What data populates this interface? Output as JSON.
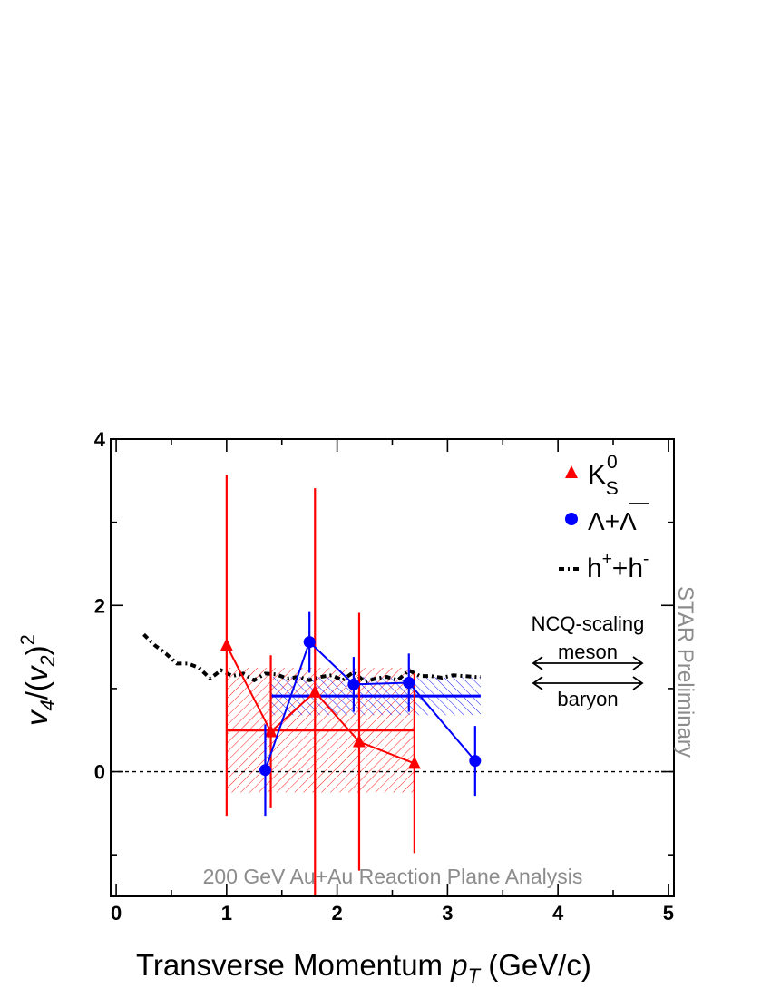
{
  "chart_data": {
    "type": "scatter",
    "xlabel": "Transverse Momentum",
    "xlabel_var": "p",
    "xlabel_sub": "T",
    "xlabel_unit": "(GeV/c)",
    "ylabel_v": "v",
    "ylabel_sub4": "4",
    "ylabel_sub2": "2",
    "ylabel_sup": "2",
    "xlim": [
      -0.05,
      5.05
    ],
    "ylim": [
      -1.5,
      4.0
    ],
    "xticks": [
      0,
      1,
      2,
      3,
      4,
      5
    ],
    "yticks": [
      0,
      2,
      4
    ],
    "grid": false,
    "legend_position": "top-right",
    "series": [
      {
        "name": "K",
        "name_sub": "S",
        "name_sup": "0",
        "marker": "triangle",
        "color": "#ff0000",
        "x": [
          1.0,
          1.4,
          1.8,
          2.2,
          2.7
        ],
        "y": [
          1.52,
          0.48,
          0.96,
          0.36,
          0.1
        ],
        "yerr": [
          2.05,
          0.92,
          2.45,
          1.55,
          1.08
        ]
      },
      {
        "name": "Λ+Λ",
        "marker": "circle",
        "color": "#0000ff",
        "x": [
          1.35,
          1.75,
          2.15,
          2.65,
          3.25
        ],
        "y": [
          0.02,
          1.56,
          1.05,
          1.07,
          0.13
        ],
        "yerr": [
          0.55,
          0.37,
          0.33,
          0.35,
          0.42
        ]
      },
      {
        "name": "h",
        "name_sup1": "+",
        "name_mid": "+h",
        "name_sup2": "-",
        "line_style": "dash-dot",
        "color": "#000000",
        "x": [
          0.25,
          0.35,
          0.45,
          0.55,
          0.65,
          0.75,
          0.85,
          0.95,
          1.05,
          1.15,
          1.25,
          1.35,
          1.45,
          1.55,
          1.65,
          1.75,
          1.85,
          1.95,
          2.05,
          2.15,
          2.25,
          2.35,
          2.45,
          2.55,
          2.65,
          2.75,
          2.85,
          2.95,
          3.05,
          3.15,
          3.25,
          3.3
        ],
        "y": [
          1.65,
          1.52,
          1.42,
          1.3,
          1.3,
          1.25,
          1.12,
          1.22,
          1.15,
          1.18,
          1.1,
          1.18,
          1.17,
          1.12,
          1.14,
          1.1,
          1.14,
          1.16,
          1.1,
          1.2,
          1.08,
          1.12,
          1.14,
          1.1,
          1.22,
          1.15,
          1.15,
          1.13,
          1.16,
          1.15,
          1.14,
          1.14
        ]
      }
    ],
    "bands": [
      {
        "name": "meson",
        "color": "#ff0000",
        "x_range": [
          1.0,
          2.7
        ],
        "value": 0.5,
        "y_range": [
          -0.25,
          1.25
        ]
      },
      {
        "name": "baryon",
        "color": "#0000ff",
        "x_range": [
          1.4,
          3.3
        ],
        "value": 0.91,
        "y_range": [
          0.68,
          1.14
        ]
      }
    ],
    "annotations": {
      "ncq_title": "NCQ-scaling",
      "meson": "meson",
      "baryon": "baryon",
      "preliminary": "STAR Preliminary",
      "analysis": "200 GeV Au+Au Reaction Plane Analysis"
    }
  }
}
